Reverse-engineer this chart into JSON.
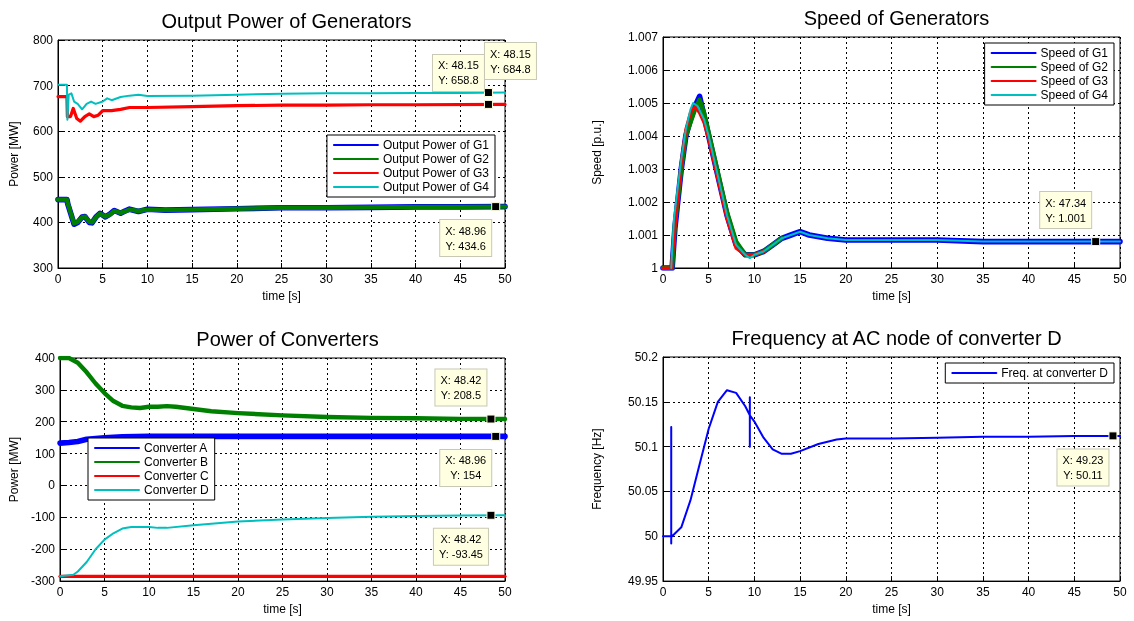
{
  "chart_data": [
    {
      "type": "line",
      "title": "Output Power of Generators",
      "xlabel": "time [s]",
      "ylabel": "Power [MW]",
      "xlim": [
        0,
        50
      ],
      "xticks": [
        0,
        5,
        10,
        15,
        20,
        25,
        30,
        35,
        40,
        45,
        50
      ],
      "ylim": [
        300,
        800
      ],
      "yticks": [
        300,
        400,
        500,
        600,
        700,
        800
      ],
      "grid": true,
      "legend": "right",
      "marker": "none",
      "line_style": "solid",
      "series": [
        {
          "name": "Output Power of G1",
          "color": "#0000ff",
          "x": [
            0,
            1,
            1.1,
            1.5,
            1.8,
            2.2,
            2.7,
            3.0,
            3.5,
            3.8,
            4.3,
            4.7,
            5.3,
            5.8,
            6.3,
            7,
            7.5,
            8,
            9,
            10,
            12,
            15,
            20,
            25,
            30,
            35,
            40,
            45,
            50
          ],
          "values": [
            450,
            450,
            440,
            415,
            396,
            400,
            412,
            413,
            400,
            399,
            413,
            420,
            412,
            418,
            426,
            420,
            425,
            429,
            424,
            429,
            427,
            428,
            430,
            432,
            432,
            433,
            434,
            434,
            434.6
          ]
        },
        {
          "name": "Output Power of G2",
          "color": "#008000",
          "x": [
            0,
            1,
            1.1,
            1.5,
            1.8,
            2.2,
            2.7,
            3.0,
            3.5,
            3.8,
            4.3,
            4.7,
            5.3,
            5.8,
            6.3,
            7,
            7.5,
            8,
            9,
            10,
            12,
            15,
            20,
            25,
            30,
            35,
            40,
            45,
            50
          ],
          "values": [
            450,
            450,
            441,
            416,
            398,
            401,
            411,
            413,
            401,
            400,
            412,
            419,
            413,
            417,
            425,
            421,
            424,
            428,
            425,
            428,
            427,
            428,
            430,
            432,
            432,
            433,
            434,
            434,
            434.6
          ]
        },
        {
          "name": "Output Power of G3",
          "color": "#ff0000",
          "x": [
            0,
            1,
            1.05,
            1.4,
            1.7,
            2.1,
            2.5,
            3,
            3.5,
            4,
            4.5,
            5,
            6,
            7,
            8,
            10,
            15,
            20,
            25,
            30,
            35,
            40,
            50
          ],
          "values": [
            676,
            676,
            632,
            632,
            650,
            628,
            622,
            632,
            638,
            632,
            635,
            645,
            645,
            648,
            652,
            652,
            654,
            656,
            657,
            657,
            658,
            658,
            658.8
          ]
        },
        {
          "name": "Output Power of G4",
          "color": "#00bfbf",
          "x": [
            0,
            1,
            1.05,
            1.2,
            1.5,
            1.8,
            2.2,
            2.7,
            3.2,
            3.7,
            4.2,
            5,
            5.5,
            6,
            7,
            8,
            9,
            10,
            15,
            20,
            25,
            30,
            35,
            40,
            45,
            50
          ],
          "values": [
            702,
            702,
            625,
            680,
            683,
            665,
            660,
            648,
            660,
            665,
            660,
            665,
            672,
            668,
            675,
            678,
            680,
            677,
            678,
            680,
            682,
            683,
            683,
            684,
            684,
            684.8
          ]
        }
      ],
      "annotations": [
        {
          "text": "X: 48.15\nY: 684.8",
          "x": 48.15,
          "y": 684.8
        },
        {
          "text": "X: 48.15\nY: 658.8",
          "x": 48.15,
          "y": 658.8
        },
        {
          "text": "X: 48.96\nY: 434.6",
          "x": 48.96,
          "y": 434.6
        }
      ]
    },
    {
      "type": "line",
      "title": "Speed of Generators",
      "xlabel": "time [s]",
      "ylabel": "Speed [p.u.]",
      "xlim": [
        0,
        50
      ],
      "xticks": [
        0,
        5,
        10,
        15,
        20,
        25,
        30,
        35,
        40,
        45,
        50
      ],
      "ylim": [
        1,
        1.007
      ],
      "yticks": [
        1,
        1.001,
        1.002,
        1.003,
        1.004,
        1.005,
        1.006,
        1.007
      ],
      "grid": true,
      "legend": "top right",
      "marker": "none",
      "line_style": "solid",
      "series": [
        {
          "name": "Speed of G1",
          "color": "#0000ff",
          "x": [
            0,
            1,
            1.3,
            2,
            2.5,
            3,
            3.5,
            4,
            4.5,
            5,
            6,
            7,
            8,
            9,
            10,
            11,
            12,
            13,
            14,
            15,
            16,
            18,
            20,
            25,
            30,
            35,
            40,
            50
          ],
          "values": [
            1,
            1,
            1.0012,
            1.003,
            1.004,
            1.0045,
            1.0049,
            1.0052,
            1.0046,
            1.004,
            1.0028,
            1.0016,
            1.0007,
            1.0004,
            1.0004,
            1.0005,
            1.0007,
            1.0009,
            1.001,
            1.0011,
            1.001,
            1.0009,
            1.00085,
            1.00085,
            1.00085,
            1.0008,
            1.0008,
            1.0008
          ]
        },
        {
          "name": "Speed of G2",
          "color": "#008000",
          "x": [
            0,
            1,
            1.3,
            2,
            2.5,
            3,
            3.5,
            4,
            4.5,
            5,
            6,
            7,
            8,
            9,
            10,
            11,
            12,
            13
          ],
          "values": [
            1,
            1,
            1.0013,
            1.003,
            1.004,
            1.0044,
            1.0048,
            1.0051,
            1.0047,
            1.0041,
            1.0029,
            1.0017,
            1.0008,
            1.0004,
            1.0004,
            1.0005,
            1.0007,
            1.0009
          ]
        },
        {
          "name": "Speed of G3",
          "color": "#ff0000",
          "x": [
            0,
            0.9,
            1.5,
            2,
            2.5,
            3,
            3.5,
            4,
            4.5,
            5,
            6,
            7,
            8,
            9,
            10,
            11
          ],
          "values": [
            1,
            1,
            1.0018,
            1.0032,
            1.0042,
            1.0047,
            1.0049,
            1.0047,
            1.0044,
            1.0039,
            1.0027,
            1.0015,
            1.0006,
            1.0004,
            1.0004,
            1.0005
          ]
        },
        {
          "name": "Speed of G4",
          "color": "#00bfbf",
          "x": [
            0.9,
            1.2,
            2,
            2.5,
            3,
            3.3,
            3.8,
            4.5,
            5,
            6,
            7,
            8,
            9,
            9.5,
            10,
            11,
            12,
            13,
            14,
            15,
            16,
            18,
            20,
            25,
            30,
            35,
            40,
            50
          ],
          "values": [
            1,
            1.0015,
            1.0033,
            1.0042,
            1.0048,
            1.005,
            1.0049,
            1.0045,
            1.004,
            1.0028,
            1.0016,
            1.0007,
            1.0004,
            1.0003,
            1.0004,
            1.0005,
            1.0007,
            1.0009,
            1.001,
            1.0011,
            1.001,
            1.0009,
            1.00085,
            1.00085,
            1.00085,
            1.0008,
            1.0008,
            1.0008
          ]
        }
      ],
      "annotations": [
        {
          "text": "X: 47.34\nY: 1.001",
          "x": 47.34,
          "y": 1.0008
        }
      ]
    },
    {
      "type": "line",
      "title": "Power of Converters",
      "xlabel": "time [s]",
      "ylabel": "Power [MW]",
      "xlim": [
        0,
        50
      ],
      "xticks": [
        0,
        5,
        10,
        15,
        20,
        25,
        30,
        35,
        40,
        45,
        50
      ],
      "ylim": [
        -300,
        400
      ],
      "yticks": [
        -300,
        -200,
        -100,
        0,
        100,
        200,
        300,
        400
      ],
      "grid": true,
      "legend": "left",
      "marker": "none",
      "line_style": "solid",
      "series": [
        {
          "name": "Converter A",
          "color": "#0000ff",
          "x": [
            0,
            1,
            2,
            3,
            5,
            7,
            10,
            20,
            30,
            40,
            50
          ],
          "values": [
            133,
            135,
            138,
            145,
            150,
            153,
            154,
            154,
            154,
            154,
            154
          ]
        },
        {
          "name": "Converter B",
          "color": "#008000",
          "x": [
            0,
            1,
            2,
            3,
            4,
            5,
            6,
            7,
            8,
            9,
            10,
            11,
            12,
            13,
            15,
            17,
            20,
            25,
            30,
            35,
            40,
            45,
            50
          ],
          "values": [
            400,
            400,
            385,
            355,
            320,
            290,
            265,
            250,
            245,
            243,
            247,
            247,
            249,
            247,
            240,
            233,
            227,
            220,
            215,
            212,
            211,
            209,
            208.5
          ]
        },
        {
          "name": "Converter C",
          "color": "#ff0000",
          "x": [
            0,
            50
          ],
          "values": [
            -285,
            -285
          ]
        },
        {
          "name": "Converter D",
          "color": "#00bfbf",
          "x": [
            0,
            1.5,
            2,
            3,
            4,
            5,
            6,
            7,
            8,
            10,
            11,
            12,
            15,
            20,
            25,
            30,
            35,
            40,
            45,
            50
          ],
          "values": [
            -285,
            -280,
            -270,
            -240,
            -200,
            -170,
            -150,
            -135,
            -130,
            -130,
            -133,
            -133,
            -125,
            -113,
            -107,
            -102,
            -98,
            -96,
            -94,
            -93.45
          ]
        }
      ],
      "annotations": [
        {
          "text": "X: 48.42\nY: 208.5",
          "x": 48.42,
          "y": 208.5
        },
        {
          "text": "X: 48.96\nY: 154",
          "x": 48.96,
          "y": 154
        },
        {
          "text": "X: 48.42\nY: -93.45",
          "x": 48.42,
          "y": -93.45
        }
      ]
    },
    {
      "type": "line",
      "title": "Frequency at AC node of converter D",
      "xlabel": "time [s]",
      "ylabel": "Frequency [Hz]",
      "xlim": [
        0,
        50
      ],
      "xticks": [
        0,
        5,
        10,
        15,
        20,
        25,
        30,
        35,
        40,
        45,
        50
      ],
      "ylim": [
        49.95,
        50.2
      ],
      "yticks": [
        49.95,
        50,
        50.05,
        50.1,
        50.15,
        50.2
      ],
      "grid": true,
      "legend": "top right",
      "marker": "none",
      "line_style": "solid",
      "series": [
        {
          "name": "Freq. at converter D",
          "color": "#0000ff",
          "x": [
            0,
            0.9,
            0.9,
            0.9,
            0.9,
            1,
            2,
            3,
            4,
            5,
            6,
            7,
            8,
            9,
            9.5,
            9.5,
            9.5,
            9.5,
            10,
            11,
            12,
            13,
            14,
            15,
            17,
            19,
            20,
            25,
            30,
            35,
            40,
            45,
            50
          ],
          "values": [
            50,
            50,
            50.122,
            49.992,
            50,
            50,
            50.01,
            50.04,
            50.08,
            50.12,
            50.15,
            50.163,
            50.16,
            50.145,
            50.135,
            50.155,
            50.1,
            50.135,
            50.128,
            50.11,
            50.097,
            50.092,
            50.092,
            50.095,
            50.103,
            50.108,
            50.109,
            50.109,
            50.11,
            50.111,
            50.111,
            50.112,
            50.112
          ]
        }
      ],
      "annotations": [
        {
          "text": "X: 49.23\nY: 50.11",
          "x": 49.23,
          "y": 50.112
        }
      ]
    }
  ]
}
